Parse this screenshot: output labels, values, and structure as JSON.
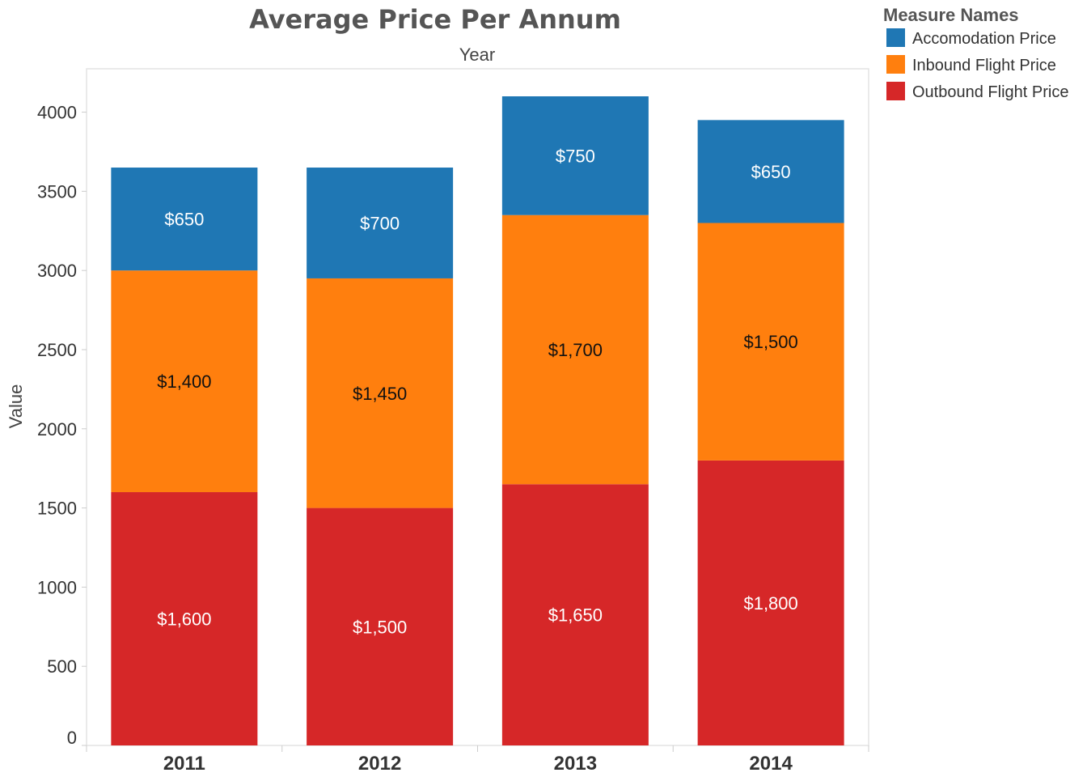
{
  "chart_data": {
    "type": "bar",
    "stacked": true,
    "title": "Average Price Per Annum",
    "subtitle": "Year",
    "xlabel": "",
    "ylabel": "Value",
    "ylim": [
      0,
      4300
    ],
    "yticks": [
      0,
      500,
      1000,
      1500,
      2000,
      2500,
      3000,
      3500,
      4000
    ],
    "categories": [
      "2011",
      "2012",
      "2013",
      "2014"
    ],
    "series": [
      {
        "name": "Outbound Flight Price",
        "color": "#d62728",
        "label_color": "#ffffff",
        "values": [
          1600,
          1500,
          1650,
          1800
        ],
        "labels": [
          "$1,600",
          "$1,500",
          "$1,650",
          "$1,800"
        ]
      },
      {
        "name": "Inbound Flight Price",
        "color": "#ff7f0e",
        "label_color": "#111111",
        "values": [
          1400,
          1450,
          1700,
          1500
        ],
        "labels": [
          "$1,400",
          "$1,450",
          "$1,700",
          "$1,500"
        ]
      },
      {
        "name": "Accomodation Price",
        "color": "#1f77b4",
        "label_color": "#ffffff",
        "values": [
          650,
          700,
          750,
          650
        ],
        "labels": [
          "$650",
          "$700",
          "$750",
          "$650"
        ]
      }
    ],
    "legend": {
      "title": "Measure Names",
      "position": "top-right",
      "order": [
        "Accomodation Price",
        "Inbound Flight Price",
        "Outbound Flight Price"
      ]
    },
    "grid": false
  }
}
